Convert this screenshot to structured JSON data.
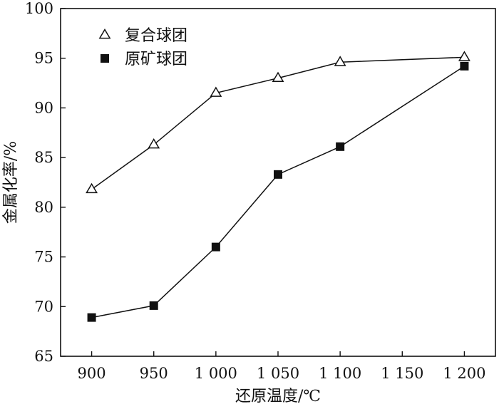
{
  "chart_data": {
    "type": "line",
    "xlabel": "还原温度/℃",
    "ylabel": "金属化率/%",
    "xlim": [
      875,
      1225
    ],
    "ylim": [
      65,
      100
    ],
    "x_ticks": [
      900,
      950,
      1000,
      1050,
      1100,
      1150,
      1200
    ],
    "x_tick_labels": [
      "900",
      "950",
      "1 000",
      "1 050",
      "1 100",
      "1 150",
      "1 200"
    ],
    "y_ticks": [
      65,
      70,
      75,
      80,
      85,
      90,
      95,
      100
    ],
    "y_tick_labels": [
      "65",
      "70",
      "75",
      "80",
      "85",
      "90",
      "95",
      "100"
    ],
    "legend_position": "top-left",
    "grid": false,
    "series": [
      {
        "name": "复合球团",
        "marker": "open-triangle",
        "color": "#111111",
        "x": [
          900,
          950,
          1000,
          1050,
          1100,
          1200
        ],
        "y": [
          81.8,
          86.3,
          91.5,
          93.0,
          94.6,
          95.1
        ]
      },
      {
        "name": "原矿球团",
        "marker": "filled-square",
        "color": "#111111",
        "x": [
          900,
          950,
          1000,
          1050,
          1100,
          1200
        ],
        "y": [
          68.9,
          70.1,
          76.0,
          83.3,
          86.1,
          94.2
        ]
      }
    ]
  }
}
